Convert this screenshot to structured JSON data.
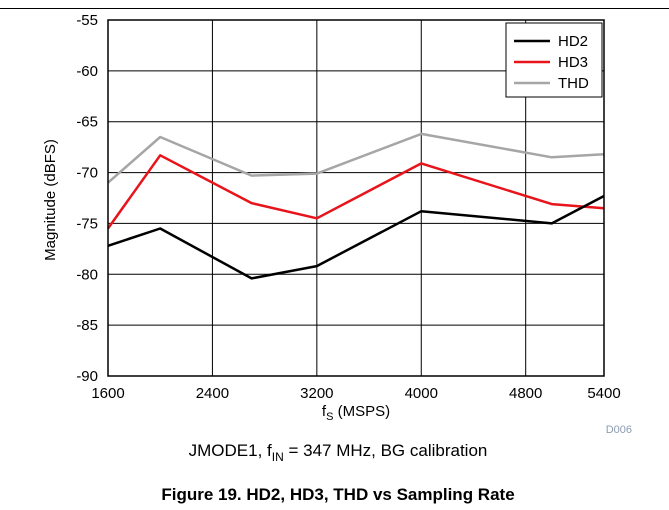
{
  "chart_data": {
    "type": "line",
    "x": [
      1600,
      2000,
      2700,
      3200,
      4000,
      5000,
      5400
    ],
    "series": [
      {
        "name": "HD2",
        "color": "#000000",
        "values": [
          -77.2,
          -75.5,
          -80.4,
          -79.2,
          -73.8,
          -75.0,
          -72.3
        ]
      },
      {
        "name": "HD3",
        "color": "#e8141b",
        "values": [
          -75.5,
          -68.3,
          -73.0,
          -74.5,
          -69.1,
          -73.1,
          -73.5
        ]
      },
      {
        "name": "THD",
        "color": "#a6a6a6",
        "values": [
          -71.0,
          -66.5,
          -70.3,
          -70.1,
          -66.2,
          -68.5,
          -68.2
        ]
      }
    ],
    "xlim": [
      1600,
      5400
    ],
    "ylim": [
      -90,
      -55
    ],
    "xticks": [
      1600,
      2400,
      3200,
      4000,
      4800,
      5400
    ],
    "yticks": [
      -55,
      -60,
      -65,
      -70,
      -75,
      -80,
      -85,
      -90
    ],
    "xticklabels": [
      "1600",
      "2400",
      "3200",
      "4000",
      "4800",
      "5400"
    ],
    "yticklabels": [
      "-55",
      "-60",
      "-65",
      "-70",
      "-75",
      "-80",
      "-85",
      "-90"
    ],
    "ylabel": "Magnitude (dBFS)",
    "xlabel_main": "f",
    "xlabel_sub": "S",
    "xlabel_rest": " (MSPS)",
    "grid": true,
    "legend": "top-right",
    "code": "D006"
  },
  "caption": {
    "prefix": "JMODE1, f",
    "sub": "IN",
    "rest": " = 347 MHz, BG calibration"
  },
  "figure_caption": "Figure 19. HD2, HD3, THD vs Sampling Rate"
}
